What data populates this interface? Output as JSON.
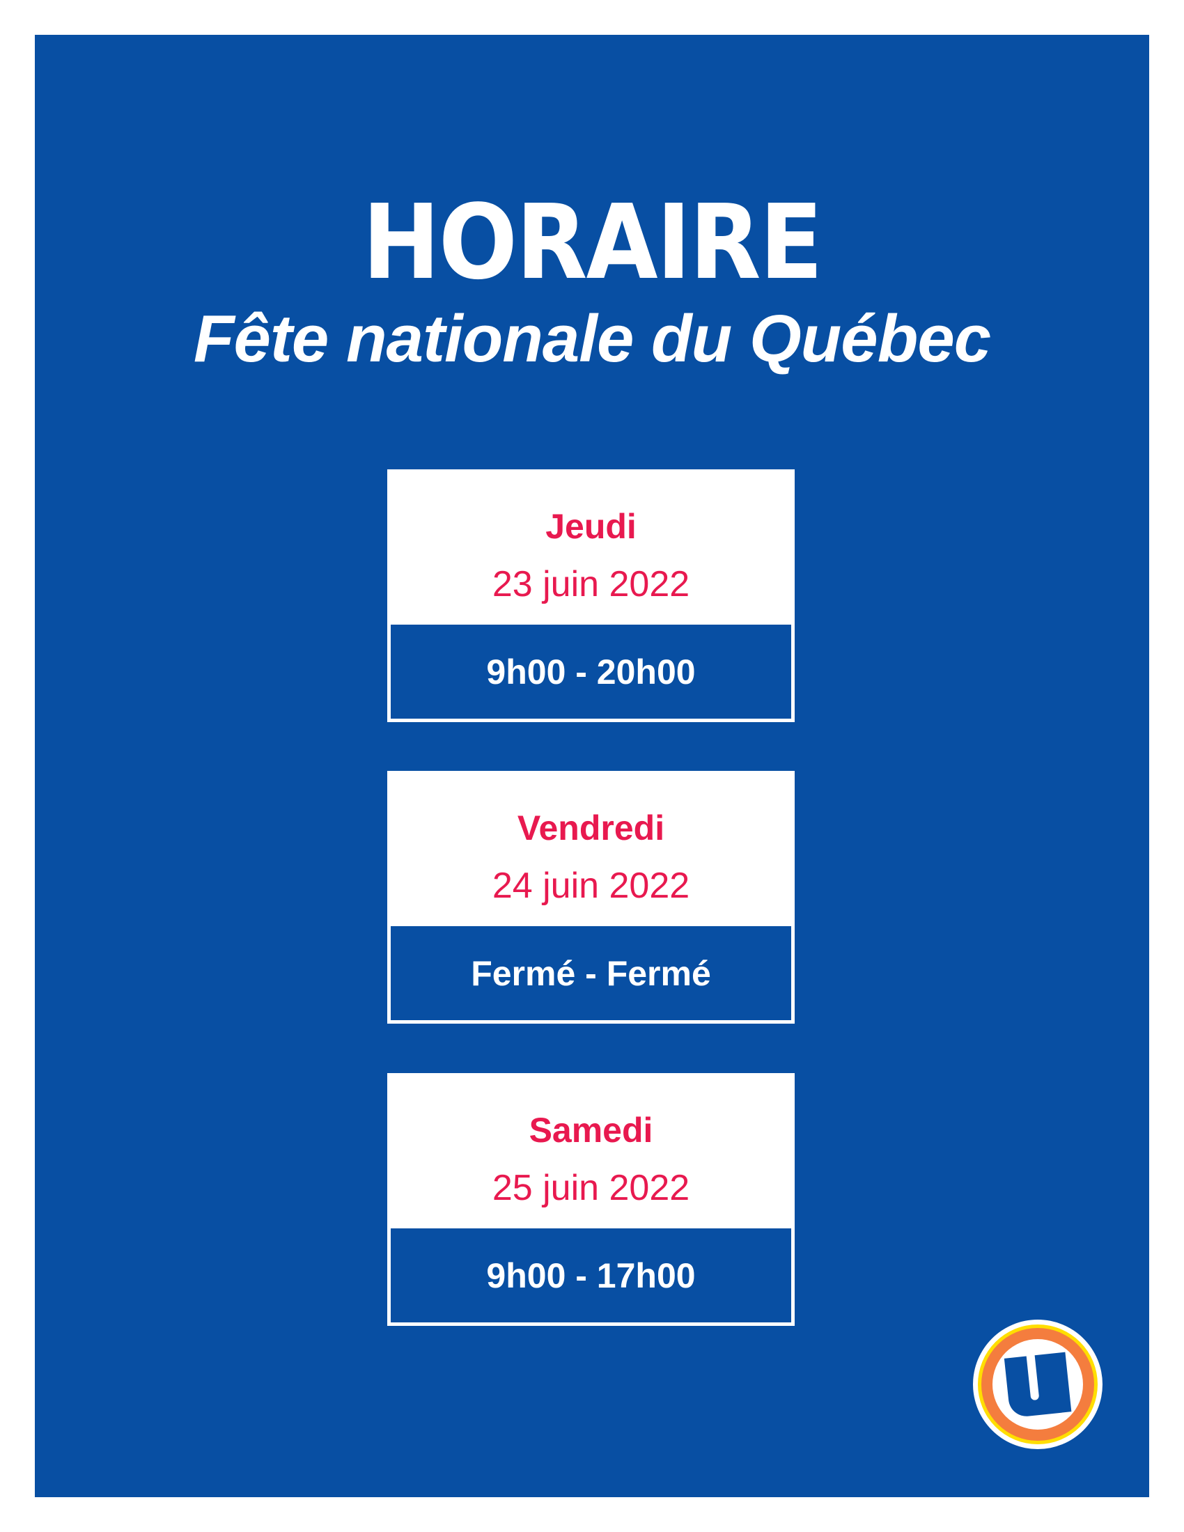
{
  "header": {
    "title": "HORAIRE",
    "subtitle": "Fête nationale du Québec"
  },
  "schedule": [
    {
      "day": "Jeudi",
      "date": "23 juin 2022",
      "hours": "9h00 - 20h00"
    },
    {
      "day": "Vendredi",
      "date": "24 juin 2022",
      "hours": "Fermé - Fermé"
    },
    {
      "day": "Samedi",
      "date": "25 juin 2022",
      "hours": "9h00 - 17h00"
    }
  ],
  "logo": {
    "icon": "u-logo-icon",
    "letter": "U"
  },
  "colors": {
    "background": "#084fa3",
    "accent": "#e8194f",
    "logo_orange": "#f47d3e",
    "logo_yellow": "#ffde00"
  }
}
